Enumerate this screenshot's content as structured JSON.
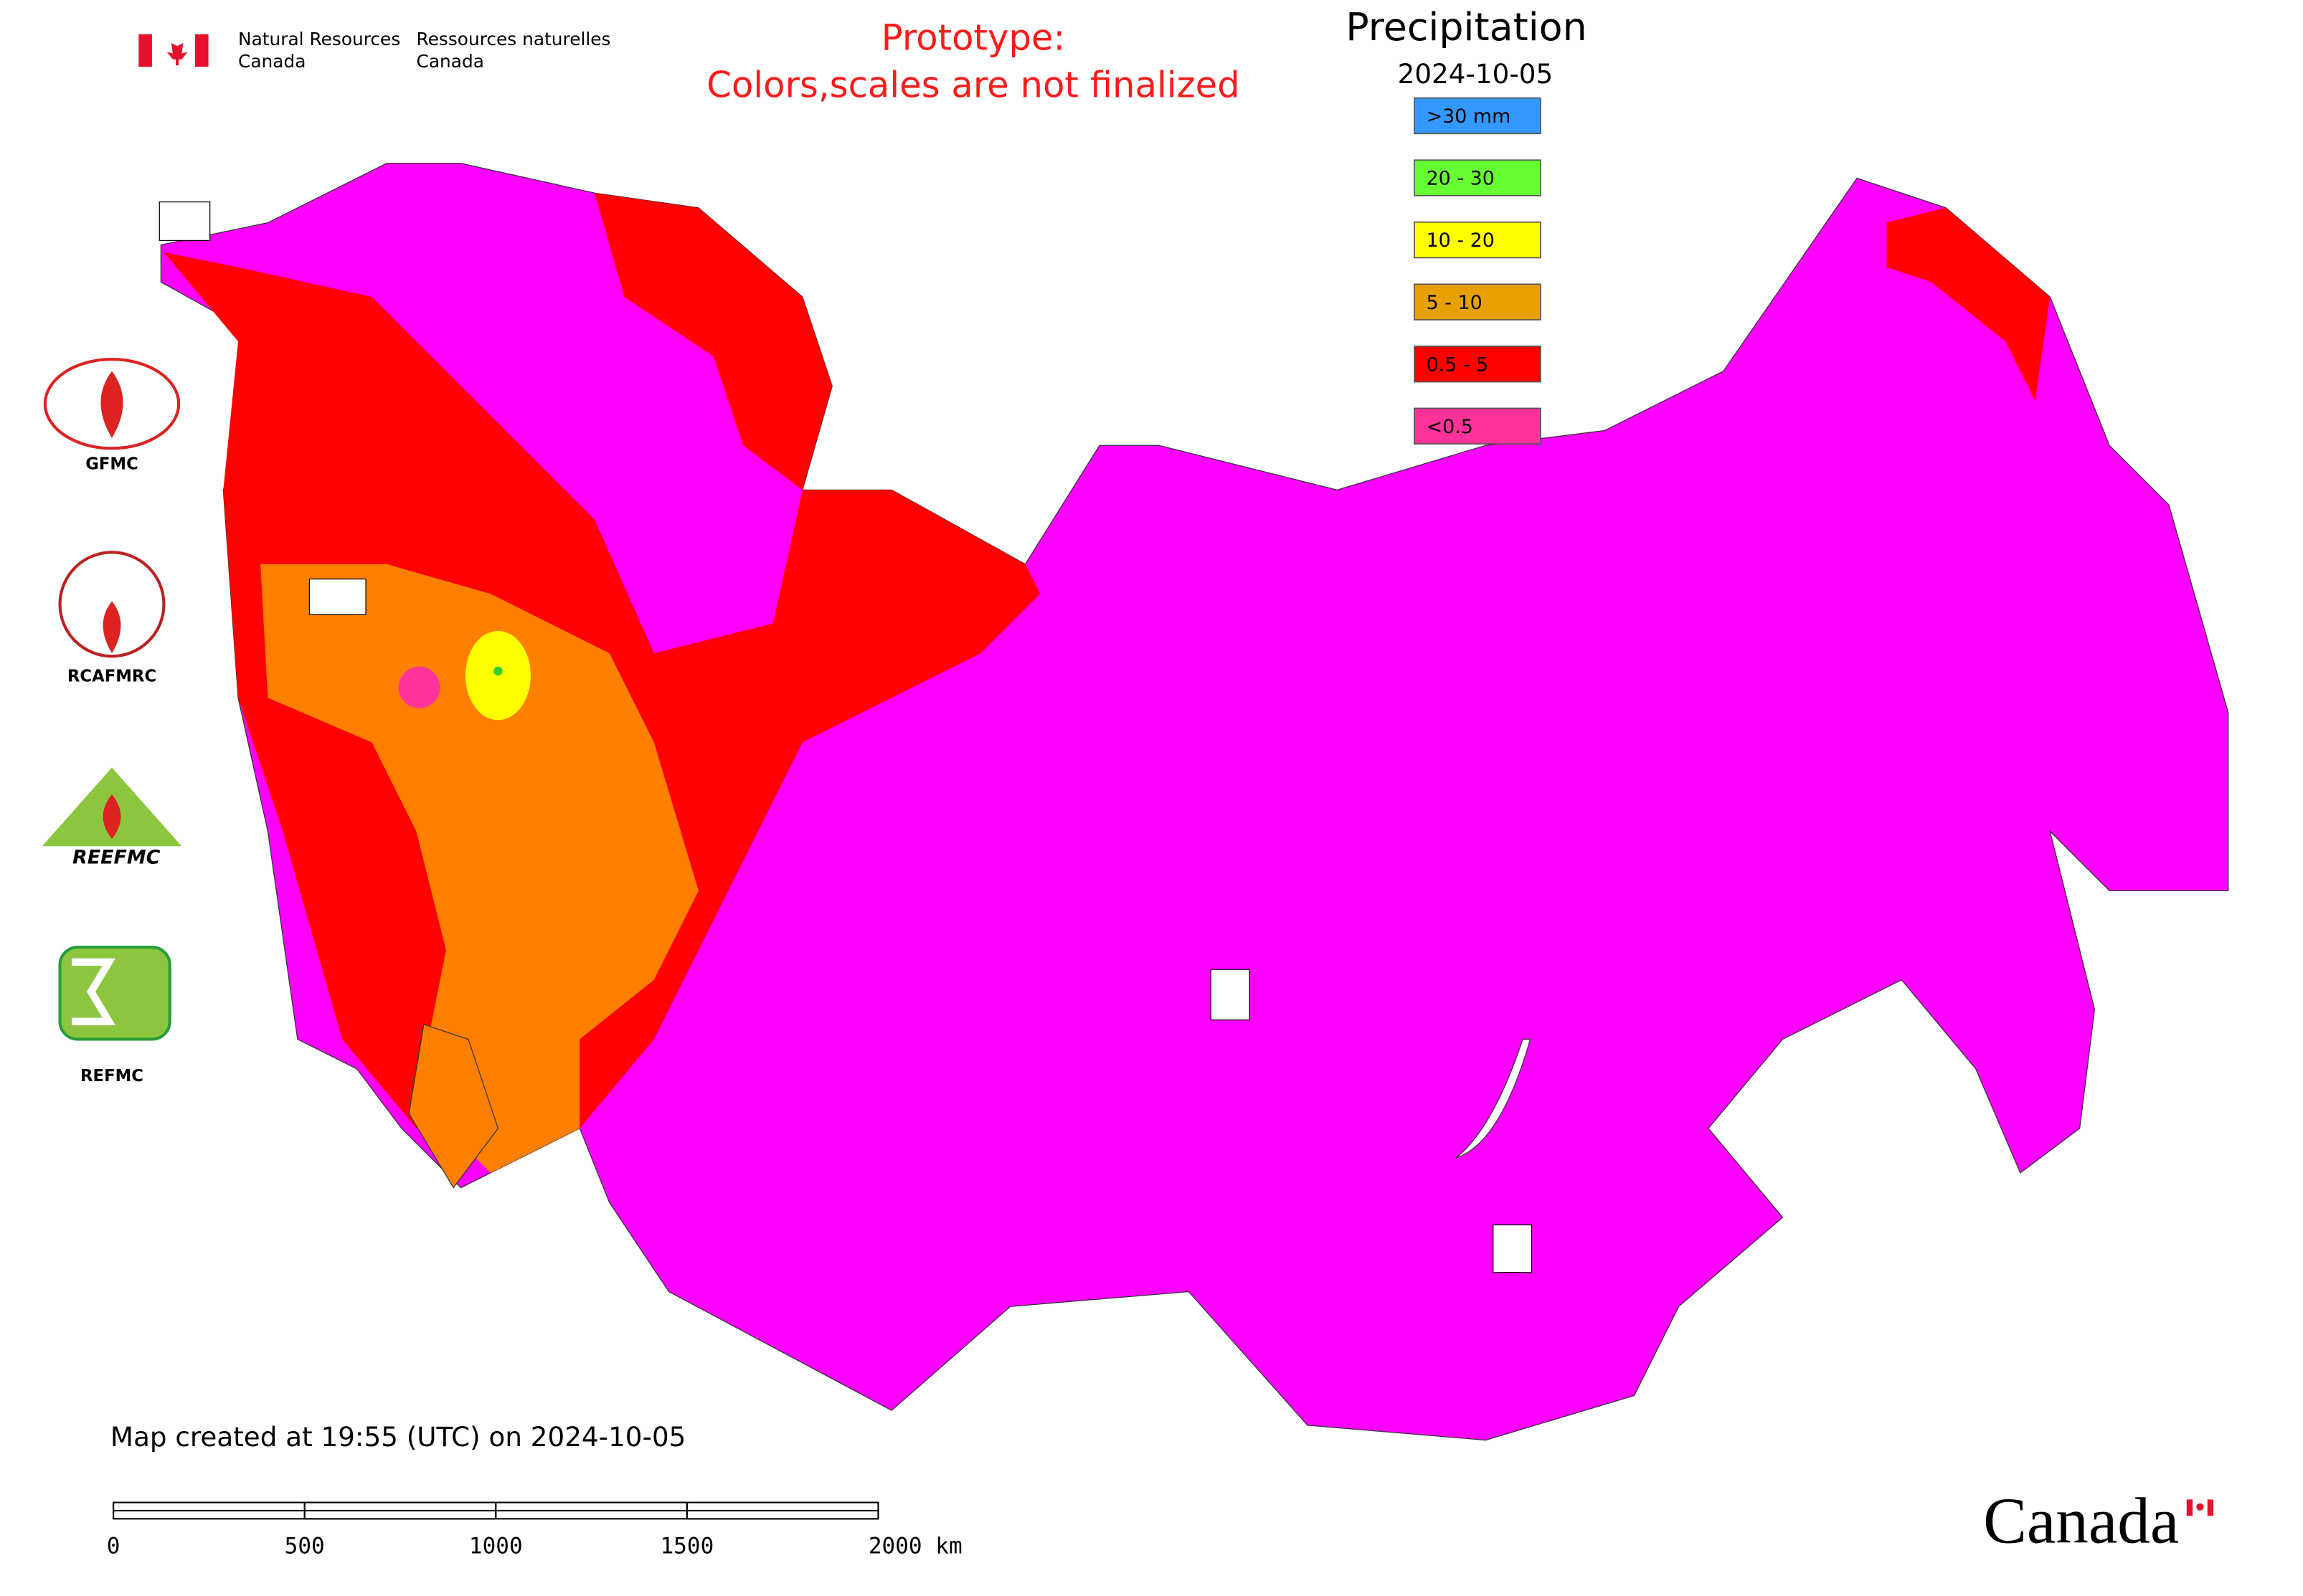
{
  "header": {
    "en_line1": "Natural Resources",
    "en_line2": "Canada",
    "fr_line1": "Ressources naturelles",
    "fr_line2": "Canada"
  },
  "notice": {
    "line1": "Prototype:",
    "line2": "Colors,scales are not finalized"
  },
  "map": {
    "title": "Precipitation",
    "date": "2024-10-05",
    "legend": [
      {
        "label": ">30 mm",
        "color": "#3399ff"
      },
      {
        "label": "20 - 30",
        "color": "#66ff33"
      },
      {
        "label": "10 - 20",
        "color": "#ffff00"
      },
      {
        "label": "5 - 10",
        "color": "#e6a000"
      },
      {
        "label": "0.5 - 5",
        "color": "#ff0000"
      },
      {
        "label": "<0.5",
        "color": "#ff3399"
      }
    ],
    "footer": "Map created at 19:55 (UTC) on 2024-10-05",
    "scale_bar": {
      "xlim": [
        0,
        2000
      ],
      "ticks": [
        0,
        500,
        1000,
        1500,
        {
          "value": 2000,
          "label": "2000 km"
        }
      ]
    }
  },
  "logos": [
    "GFMC",
    "RCAFMRC",
    "REEFMC",
    "REFMC"
  ],
  "wordmark": "Canada"
}
